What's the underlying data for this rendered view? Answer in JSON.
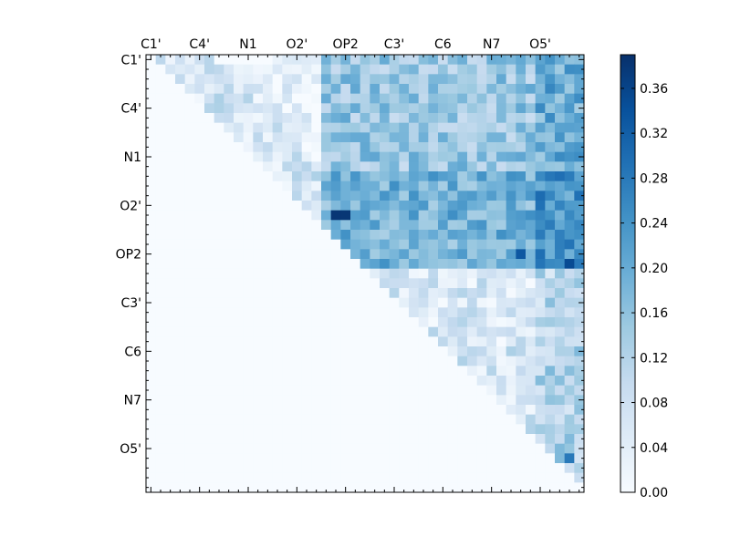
{
  "chart_data": {
    "type": "heatmap",
    "title": "",
    "xlabel": "",
    "ylabel": "",
    "grid": false,
    "n": 45,
    "x_tick_labels": [
      "C1'",
      "C4'",
      "N1",
      "O2'",
      "OP2",
      "C3'",
      "C6",
      "N7",
      "O5'"
    ],
    "y_tick_labels": [
      "C1'",
      "C4'",
      "N1",
      "O2'",
      "OP2",
      "C3'",
      "C6",
      "N7",
      "O5'"
    ],
    "tick_label_positions": [
      0.5,
      5.5,
      10.5,
      15.5,
      20.5,
      25.5,
      30.5,
      35.5,
      40.5
    ],
    "upper_triangle_only": true,
    "colormap": "Blues",
    "colorbar": {
      "range": [
        0.0,
        0.39
      ],
      "ticks": [
        0.0,
        0.04,
        0.08,
        0.12,
        0.16,
        0.2,
        0.24,
        0.28,
        0.32,
        0.36
      ],
      "tick_labels": [
        "0.00",
        "0.04",
        "0.08",
        "0.12",
        "0.16",
        "0.20",
        "0.24",
        "0.28",
        "0.32",
        "0.36"
      ]
    },
    "colors": {
      "low": "#f7fbff",
      "high": "#08306b"
    },
    "values_description_note": ""
  }
}
